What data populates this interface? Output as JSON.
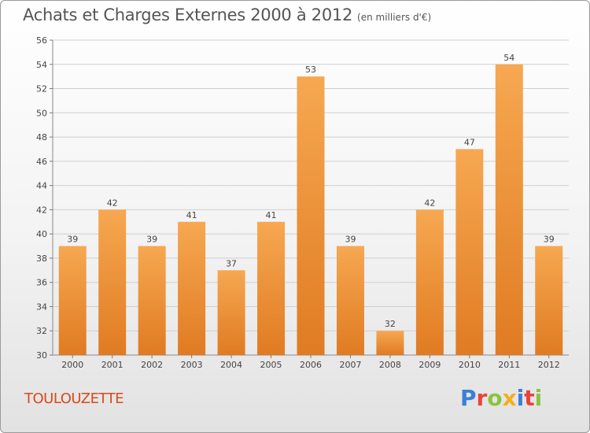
{
  "title": "Achats et Charges Externes 2000 à 2012",
  "unit": "(en milliers d'€)",
  "commune": "TOULOUZETTE",
  "logo": {
    "letters": [
      "P",
      "r",
      "o",
      "x",
      "i",
      "t",
      "i"
    ],
    "colors": [
      "#3d7fd6",
      "#e8443a",
      "#8ac440",
      "#f2b01e",
      "#3d7fd6",
      "#e8443a",
      "#8ac440"
    ]
  },
  "colors": {
    "bar_top": "#f6a851",
    "bar_bottom": "#e07b22",
    "title": "#555555",
    "commune": "#d84a1b"
  },
  "chart_data": {
    "type": "bar",
    "categories": [
      "2000",
      "2001",
      "2002",
      "2003",
      "2004",
      "2005",
      "2006",
      "2007",
      "2008",
      "2009",
      "2010",
      "2011",
      "2012"
    ],
    "values": [
      39,
      42,
      39,
      41,
      37,
      41,
      53,
      39,
      32,
      42,
      47,
      54,
      39
    ],
    "ylim": [
      30,
      56
    ],
    "yticks": [
      30,
      32,
      34,
      36,
      38,
      40,
      42,
      44,
      46,
      48,
      50,
      52,
      54,
      56
    ],
    "grid": true
  }
}
